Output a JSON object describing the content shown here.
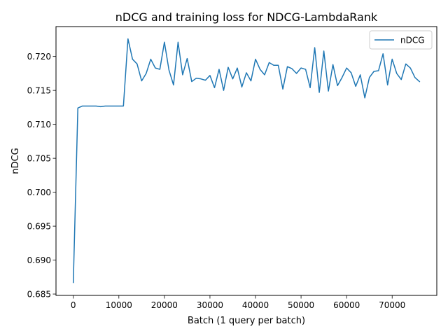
{
  "chart_data": {
    "type": "line",
    "title": "nDCG and training loss for NDCG-LambdaRank",
    "xlabel": "Batch (1 query per batch)",
    "ylabel": "nDCG",
    "xlim": [
      -3800,
      79800
    ],
    "ylim": [
      0.6848,
      0.7244
    ],
    "xticks": [
      0,
      10000,
      20000,
      30000,
      40000,
      50000,
      60000,
      70000
    ],
    "xtick_labels": [
      "0",
      "10000",
      "20000",
      "30000",
      "40000",
      "50000",
      "60000",
      "70000"
    ],
    "yticks": [
      0.685,
      0.69,
      0.695,
      0.7,
      0.705,
      0.71,
      0.715,
      0.72
    ],
    "ytick_labels": [
      "0.685",
      "0.690",
      "0.695",
      "0.700",
      "0.705",
      "0.710",
      "0.715",
      "0.720"
    ],
    "grid": false,
    "legend_position": "top-right",
    "colors": {
      "series": "#1f77b4",
      "frame": "#000000",
      "legend_border": "#cccccc"
    },
    "series": [
      {
        "name": "nDCG",
        "x": [
          0,
          1000,
          2000,
          3000,
          4000,
          5000,
          6000,
          7000,
          8000,
          9000,
          10000,
          11000,
          12000,
          13000,
          14000,
          15000,
          16000,
          17000,
          18000,
          19000,
          20000,
          21000,
          22000,
          23000,
          24000,
          25000,
          26000,
          27000,
          28000,
          29000,
          30000,
          31000,
          32000,
          33000,
          34000,
          35000,
          36000,
          37000,
          38000,
          39000,
          40000,
          41000,
          42000,
          43000,
          44000,
          45000,
          46000,
          47000,
          48000,
          49000,
          50000,
          51000,
          52000,
          53000,
          54000,
          55000,
          56000,
          57000,
          58000,
          59000,
          60000,
          61000,
          62000,
          63000,
          64000,
          65000,
          66000,
          67000,
          68000,
          69000,
          70000,
          71000,
          72000,
          73000,
          74000,
          75000,
          76000
        ],
        "values": [
          0.6867,
          0.7124,
          0.7127,
          0.7127,
          0.7127,
          0.7127,
          0.7126,
          0.7127,
          0.7127,
          0.7127,
          0.7127,
          0.7127,
          0.7226,
          0.7196,
          0.7189,
          0.7164,
          0.7175,
          0.7196,
          0.7183,
          0.7181,
          0.7221,
          0.718,
          0.7158,
          0.7221,
          0.7173,
          0.7197,
          0.7163,
          0.7168,
          0.7167,
          0.7165,
          0.7172,
          0.7154,
          0.7181,
          0.715,
          0.7184,
          0.7167,
          0.7183,
          0.7155,
          0.7176,
          0.7164,
          0.7196,
          0.7181,
          0.7173,
          0.7191,
          0.7187,
          0.7187,
          0.7152,
          0.7185,
          0.7182,
          0.7175,
          0.7183,
          0.7181,
          0.7154,
          0.7213,
          0.7147,
          0.7208,
          0.7149,
          0.7188,
          0.7157,
          0.7169,
          0.7183,
          0.7176,
          0.7156,
          0.7173,
          0.7139,
          0.7169,
          0.7178,
          0.7179,
          0.7204,
          0.7158,
          0.7196,
          0.7175,
          0.7166,
          0.7189,
          0.7183,
          0.7169,
          0.7163
        ]
      }
    ]
  }
}
